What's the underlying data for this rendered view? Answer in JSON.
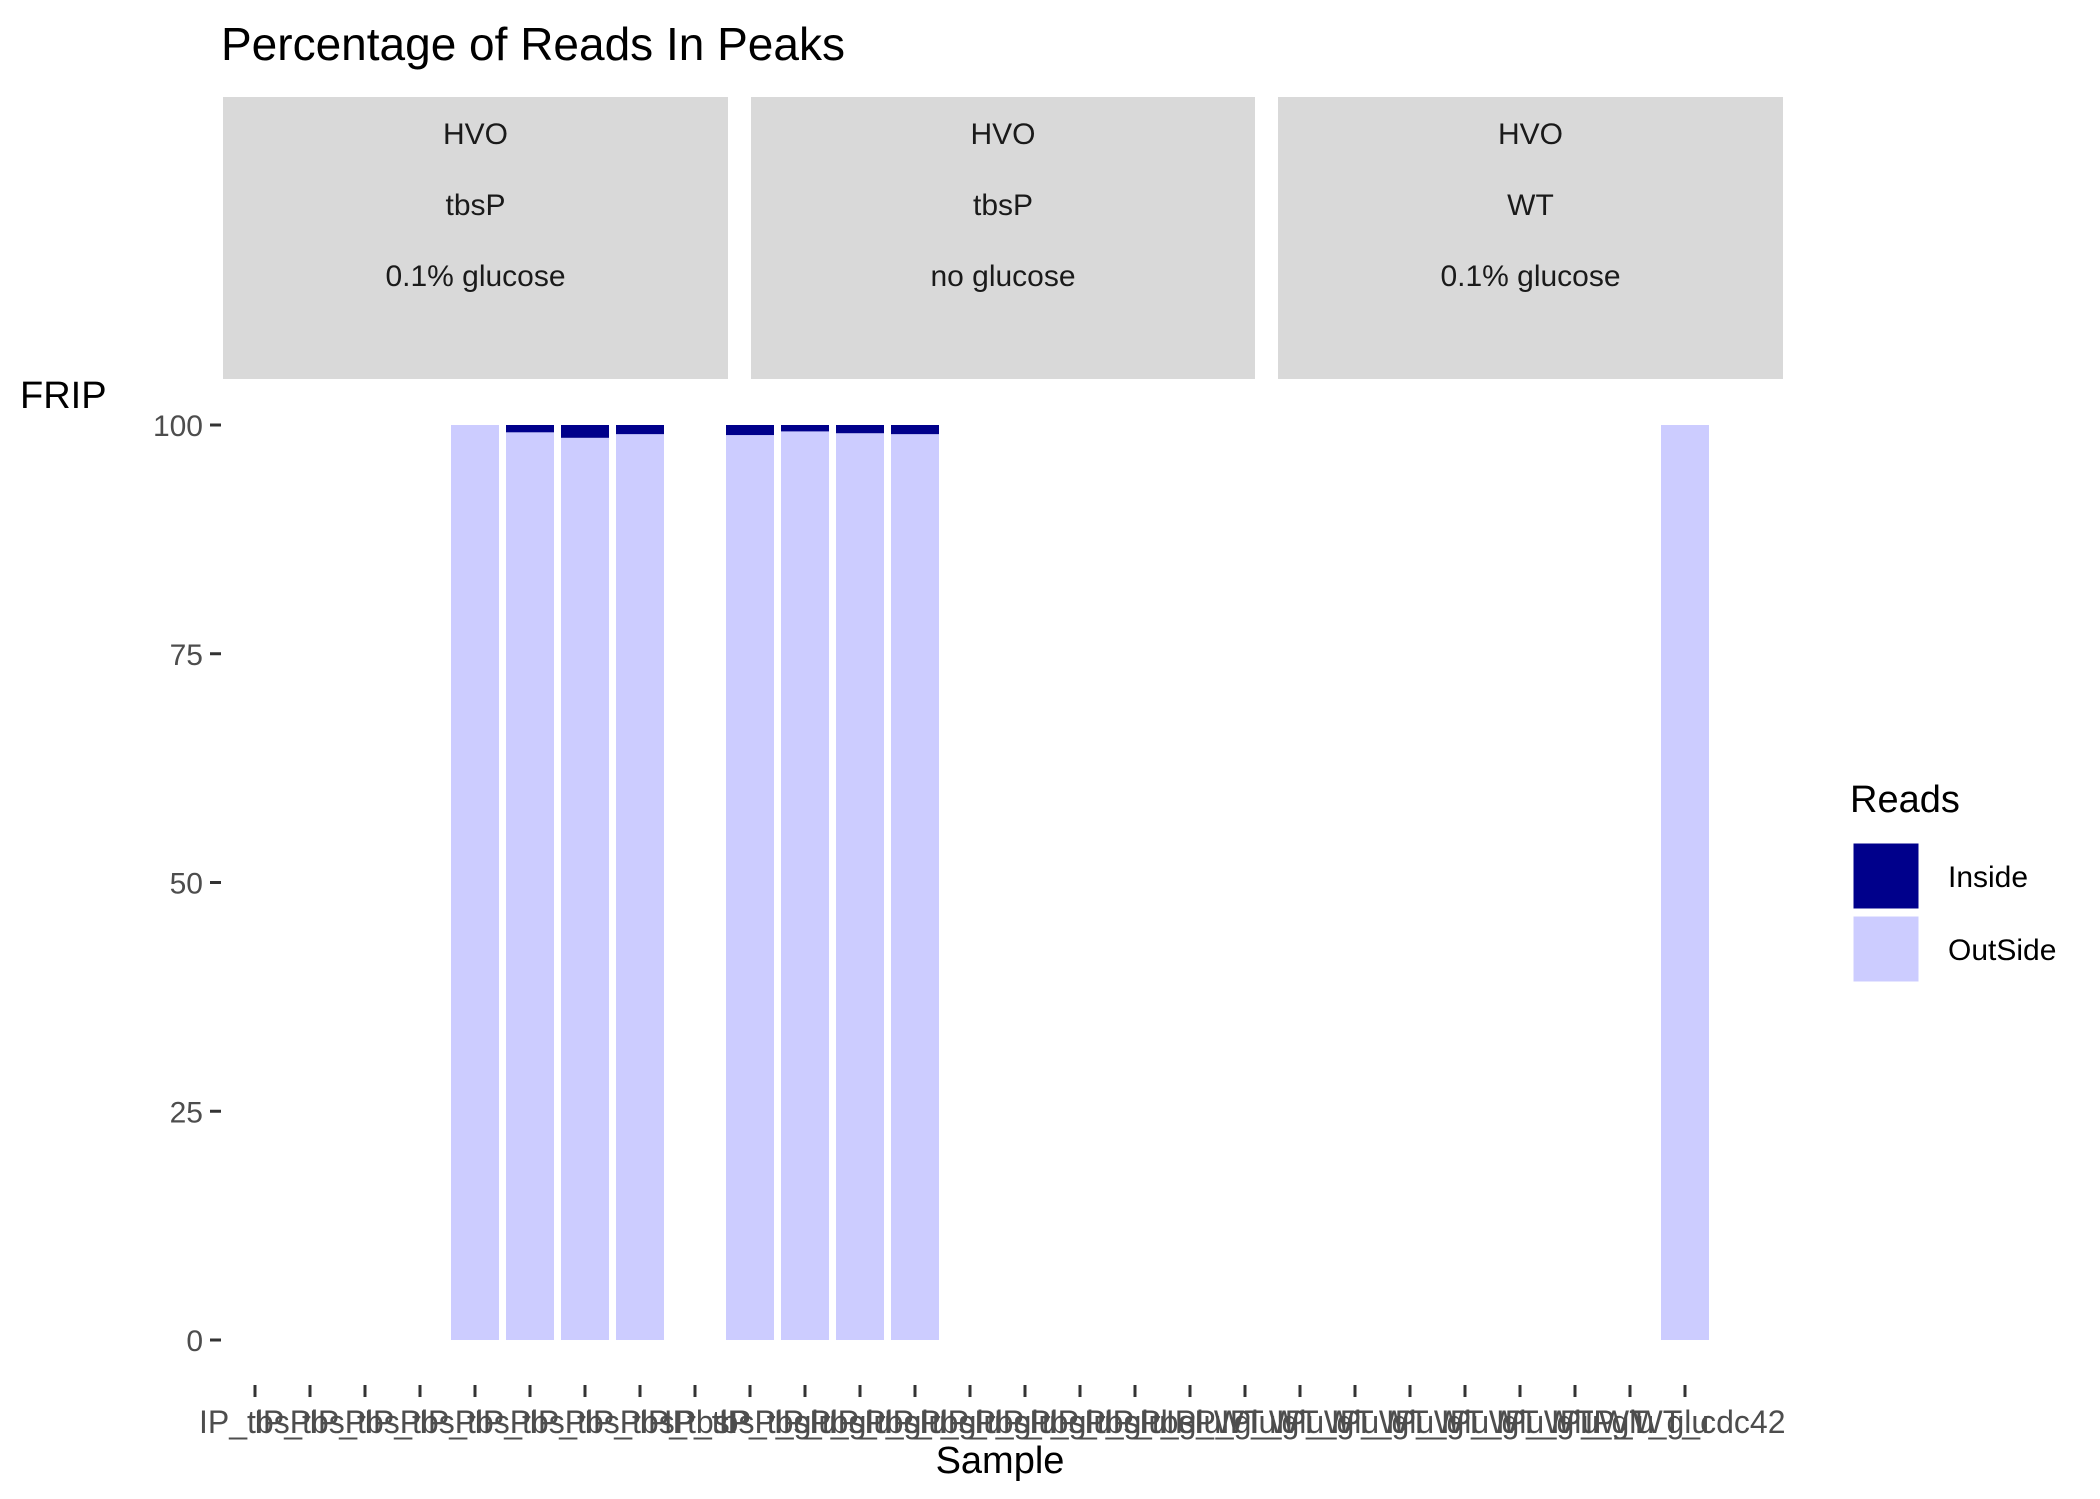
{
  "chart_data": {
    "type": "bar",
    "stacked": true,
    "title": "Percentage of Reads In Peaks",
    "xlabel": "Sample",
    "ylabel": "FRIP",
    "ylim": [
      0,
      100
    ],
    "yticks": [
      0,
      25,
      50,
      75,
      100
    ],
    "legend": {
      "title": "Reads",
      "placement": "right",
      "entries": [
        {
          "name": "Inside",
          "color": "#00008B"
        },
        {
          "name": "OutSide",
          "color": "#CCCCFF"
        }
      ]
    },
    "facets": [
      {
        "strip": [
          "HVO",
          "tbsP",
          "0.1% glucose"
        ]
      },
      {
        "strip": [
          "HVO",
          "tbsP",
          "no glucose"
        ]
      },
      {
        "strip": [
          "HVO",
          "WT",
          "0.1% glucose"
        ]
      }
    ],
    "x_tick_labels": [
      "IP_tbsP",
      "IP_tbsP",
      "IP_tbsP",
      "IP_tbsP",
      "IP_tbsP",
      "IP_tbsP",
      "IP_tbsP",
      "IP_tbsP",
      "IP_tbsP",
      "IP_tbsP_glu",
      "IP_tbsP_glu",
      "IP_tbsP_glu",
      "IP_tbsP_glu",
      "IP_tbsP_glu",
      "IP_tbsP_glu",
      "IP_tbsP_glu",
      "IP_tbsP_glu",
      "IP_tbsP_glu",
      "IP_WT_glu",
      "IP_WT_glu",
      "IP_WT_glu",
      "IP_WT_glu",
      "IP_WT_glu",
      "IP_WT_glu",
      "IP_WT_glu",
      "IP_WT_glu",
      "IP_WT_cdc42"
    ],
    "bars": [
      {
        "slot": 4,
        "inside": 0.0,
        "outside": 100.0
      },
      {
        "slot": 5,
        "inside": 0.8,
        "outside": 99.2
      },
      {
        "slot": 6,
        "inside": 1.4,
        "outside": 98.6
      },
      {
        "slot": 7,
        "inside": 1.0,
        "outside": 99.0
      },
      {
        "slot": 9,
        "inside": 1.1,
        "outside": 98.9
      },
      {
        "slot": 10,
        "inside": 0.7,
        "outside": 99.3
      },
      {
        "slot": 11,
        "inside": 0.9,
        "outside": 99.1
      },
      {
        "slot": 12,
        "inside": 1.0,
        "outside": 99.0
      },
      {
        "slot": 26,
        "inside": 0.0,
        "outside": 100.0
      }
    ]
  }
}
